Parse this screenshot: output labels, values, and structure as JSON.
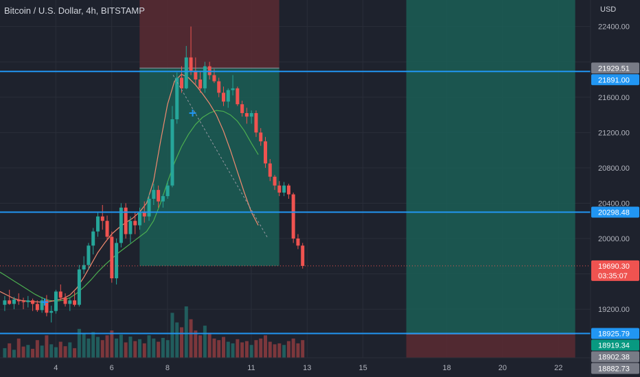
{
  "header": {
    "title": "Bitcoin / U.S. Dollar, 4h, BITSTAMP",
    "currency": "USD"
  },
  "colors": {
    "background": "#1e222d",
    "up": "#26a69a",
    "down": "#ef5350",
    "hline": "#2196f3",
    "ema_fast": "#f28b70",
    "ema_slow": "#4caf50",
    "profit_zone": "#1b5e56",
    "loss_zone": "#5a2a33"
  },
  "chart_data": {
    "type": "candlestick",
    "ylabel": "USD",
    "ylim": [
      18650,
      22700
    ],
    "yticks": [
      22400,
      22000,
      21600,
      21200,
      20800,
      20400,
      20000,
      19600,
      19200
    ],
    "yticklabels": [
      "22400.00",
      "21600.00",
      "21200.00",
      "20800.00",
      "20400.00",
      "20000.00",
      "19200.00"
    ],
    "xticks": [
      4,
      6,
      8,
      11,
      13,
      15,
      18,
      20,
      22
    ],
    "xlim": [
      2.0,
      23.15
    ],
    "horizontal_lines": [
      21891.0,
      20298.48,
      18925.79
    ],
    "price_labels": [
      {
        "value": 21929.51,
        "text": "21929.51",
        "color": "#787b86"
      },
      {
        "value": 21891.0,
        "text": "21891.00",
        "color": "#2196f3"
      },
      {
        "value": 20298.48,
        "text": "20298.48",
        "color": "#2196f3"
      },
      {
        "value": 19690.3,
        "text": "19690.30",
        "color": "#ef5350"
      },
      {
        "value": 18925.79,
        "text": "18925.79",
        "color": "#2196f3"
      },
      {
        "value": 18919.34,
        "text": "18919.34",
        "color": "#089981"
      },
      {
        "value": 18902.38,
        "text": "18902.38",
        "color": "#787b86"
      },
      {
        "value": 18882.73,
        "text": "18882.73",
        "color": "#787b86"
      }
    ],
    "countdown": "03:35:07",
    "positions": [
      {
        "type": "short",
        "x_start": 7.0,
        "x_end": 12.0,
        "entry": 21929.51,
        "stop_top": 22700,
        "target": 19690.3
      },
      {
        "type": "long",
        "x_start": 16.55,
        "x_end": 22.6,
        "entry": 18919.34,
        "stop": 18650,
        "target": 22700
      }
    ],
    "candles": {
      "x_start": 2.17,
      "step": 0.1667,
      "ohlc": [
        [
          19250,
          19350,
          19180,
          19300
        ],
        [
          19300,
          19420,
          19250,
          19260
        ],
        [
          19260,
          19340,
          19200,
          19310
        ],
        [
          19310,
          19380,
          19250,
          19290
        ],
        [
          19290,
          19330,
          19200,
          19280
        ],
        [
          19280,
          19350,
          19220,
          19300
        ],
        [
          19300,
          19320,
          19180,
          19260
        ],
        [
          19260,
          19300,
          19170,
          19190
        ],
        [
          19190,
          19340,
          19160,
          19300
        ],
        [
          19300,
          19360,
          19120,
          19160
        ],
        [
          19160,
          19240,
          19050,
          19180
        ],
        [
          19180,
          19420,
          19150,
          19400
        ],
        [
          19400,
          19480,
          19300,
          19330
        ],
        [
          19330,
          19380,
          19230,
          19260
        ],
        [
          19260,
          19330,
          19180,
          19300
        ],
        [
          19300,
          19400,
          19230,
          19250
        ],
        [
          19250,
          19700,
          19230,
          19650
        ],
        [
          19650,
          19800,
          19600,
          19700
        ],
        [
          19700,
          19950,
          19650,
          19920
        ],
        [
          19920,
          20120,
          19820,
          20080
        ],
        [
          20080,
          20300,
          20020,
          20250
        ],
        [
          20250,
          20380,
          20100,
          20200
        ],
        [
          20200,
          20260,
          19980,
          20020
        ],
        [
          20020,
          20080,
          19500,
          19550
        ],
        [
          19550,
          20000,
          19480,
          19950
        ],
        [
          19950,
          20400,
          19900,
          20350
        ],
        [
          20350,
          20400,
          20000,
          20050
        ],
        [
          20050,
          20250,
          19950,
          20200
        ],
        [
          20200,
          20300,
          20050,
          20150
        ],
        [
          20150,
          20350,
          20100,
          20300
        ],
        [
          20300,
          20420,
          20180,
          20250
        ],
        [
          20250,
          20500,
          20200,
          20450
        ],
        [
          20450,
          20620,
          20380,
          20550
        ],
        [
          20550,
          20600,
          20350,
          20420
        ],
        [
          20420,
          20500,
          20350,
          20480
        ],
        [
          20480,
          20650,
          20450,
          20600
        ],
        [
          20600,
          21500,
          20580,
          21350
        ],
        [
          21350,
          21880,
          21300,
          21820
        ],
        [
          21820,
          21950,
          21650,
          21700
        ],
        [
          21700,
          22180,
          21690,
          22050
        ],
        [
          22050,
          22400,
          21850,
          21900
        ],
        [
          21900,
          22050,
          21750,
          21800
        ],
        [
          21800,
          21900,
          21650,
          21700
        ],
        [
          21700,
          22000,
          21650,
          21950
        ],
        [
          21950,
          22000,
          21800,
          21850
        ],
        [
          21850,
          21920,
          21760,
          21780
        ],
        [
          21780,
          21820,
          21600,
          21650
        ],
        [
          21650,
          21720,
          21500,
          21550
        ],
        [
          21550,
          21700,
          21480,
          21680
        ],
        [
          21680,
          21850,
          21620,
          21700
        ],
        [
          21700,
          21720,
          21500,
          21520
        ],
        [
          21520,
          21560,
          21380,
          21420
        ],
        [
          21420,
          21480,
          21300,
          21380
        ],
        [
          21380,
          21450,
          21300,
          21420
        ],
        [
          21420,
          21450,
          21150,
          21200
        ],
        [
          21200,
          21250,
          21050,
          21100
        ],
        [
          21100,
          21150,
          20800,
          20850
        ],
        [
          20850,
          20900,
          20650,
          20700
        ],
        [
          20700,
          20720,
          20550,
          20600
        ],
        [
          20600,
          20650,
          20480,
          20520
        ],
        [
          20520,
          20640,
          20480,
          20600
        ],
        [
          20600,
          20620,
          20450,
          20500
        ],
        [
          20500,
          20520,
          19950,
          20000
        ],
        [
          20000,
          20050,
          19880,
          19920
        ],
        [
          19920,
          19950,
          19660,
          19690
        ]
      ]
    },
    "ema_fast": {
      "x_start": 2.0,
      "step": 0.25,
      "values": [
        19400,
        19360,
        19320,
        19300,
        19290,
        19285,
        19280,
        19285,
        19300,
        19320,
        19360,
        19440,
        19560,
        19700,
        19840,
        19950,
        20050,
        20120,
        20180,
        20230,
        20300,
        20400,
        20650,
        21100,
        21520,
        21780,
        21860,
        21820,
        21740,
        21640,
        21530,
        21400,
        21220,
        21000,
        20760,
        20520,
        20300,
        20150
      ]
    },
    "ema_slow": {
      "x_start": 2.0,
      "step": 0.25,
      "values": [
        19620,
        19570,
        19520,
        19470,
        19420,
        19370,
        19330,
        19300,
        19290,
        19300,
        19330,
        19380,
        19450,
        19530,
        19620,
        19700,
        19770,
        19840,
        19900,
        19960,
        20020,
        20080,
        20200,
        20400,
        20640,
        20860,
        21040,
        21180,
        21290,
        21370,
        21420,
        21450,
        21440,
        21400,
        21330,
        21220,
        21080,
        20950
      ]
    },
    "volume": {
      "x_start": 2.17,
      "step": 0.1667,
      "values": [
        30,
        45,
        25,
        60,
        35,
        40,
        28,
        55,
        38,
        70,
        42,
        33,
        50,
        36,
        48,
        30,
        90,
        75,
        60,
        80,
        65,
        55,
        70,
        85,
        60,
        72,
        48,
        66,
        52,
        58,
        45,
        70,
        60,
        50,
        62,
        55,
        140,
        110,
        95,
        160,
        120,
        85,
        70,
        100,
        78,
        60,
        55,
        65,
        50,
        45,
        58,
        48,
        52,
        40,
        55,
        60,
        70,
        50,
        42,
        45,
        40,
        52,
        60,
        45,
        55
      ],
      "max": 160
    },
    "markers": [
      {
        "x": 3.6,
        "price": 19280
      },
      {
        "x": 8.9,
        "price": 21420
      }
    ]
  }
}
